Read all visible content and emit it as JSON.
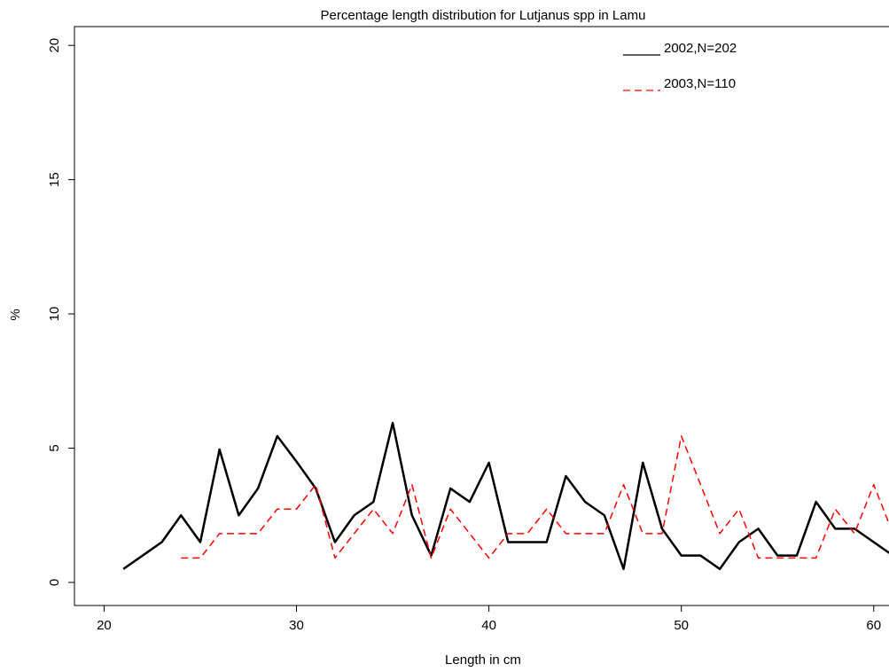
{
  "chart_data": {
    "type": "line",
    "title": "Percentage length distribution for Lutjanus spp in Lamu",
    "x_label": "Length in cm",
    "y_label": "%",
    "xlim": [
      18.46,
      61.3
    ],
    "ylim": [
      -0.86,
      20.7
    ],
    "xticks": [
      20,
      30,
      40,
      50,
      60
    ],
    "yticks": [
      0,
      5,
      10,
      15,
      20
    ],
    "legend": "top-right",
    "series": [
      {
        "name": "2002,N=202",
        "color": "#000000",
        "dash": "solid",
        "x": [
          21,
          22,
          23,
          24,
          25,
          26,
          27,
          28,
          29,
          30,
          31,
          32,
          33,
          34,
          35,
          36,
          37,
          38,
          39,
          40,
          41,
          42,
          43,
          44,
          45,
          46,
          47,
          48,
          49,
          50,
          51,
          52,
          53,
          54,
          55,
          56,
          57,
          58,
          59,
          60,
          61
        ],
        "values": [
          0.5,
          1.0,
          1.5,
          2.5,
          1.5,
          4.95,
          2.5,
          3.5,
          5.45,
          4.5,
          3.5,
          1.5,
          2.5,
          3.0,
          5.94,
          2.5,
          1.0,
          3.5,
          3.0,
          4.46,
          1.5,
          1.5,
          1.5,
          3.96,
          3.0,
          2.5,
          0.5,
          4.46,
          2.0,
          1.0,
          1.0,
          0.5,
          1.5,
          2.0,
          1.0,
          1.0,
          3.0,
          2.0,
          2.0,
          1.5,
          1.0
        ]
      },
      {
        "name": "2003,N=110",
        "color": "#ff0000",
        "dash": "dashed",
        "x": [
          24,
          25,
          26,
          27,
          28,
          29,
          30,
          31,
          32,
          33,
          34,
          35,
          36,
          37,
          38,
          39,
          40,
          41,
          42,
          43,
          44,
          45,
          46,
          47,
          48,
          49,
          50,
          51,
          52,
          53,
          54,
          55,
          56,
          57,
          58,
          59,
          60,
          61
        ],
        "values": [
          0.91,
          0.91,
          1.82,
          1.82,
          1.82,
          2.73,
          2.73,
          3.64,
          0.91,
          1.82,
          2.73,
          1.82,
          3.64,
          0.91,
          2.73,
          1.82,
          0.91,
          1.82,
          1.82,
          2.73,
          1.82,
          1.82,
          1.82,
          3.64,
          1.82,
          1.82,
          5.45,
          3.64,
          1.82,
          2.73,
          0.91,
          0.91,
          0.91,
          0.91,
          2.73,
          1.82,
          3.64,
          1.82
        ]
      }
    ]
  }
}
